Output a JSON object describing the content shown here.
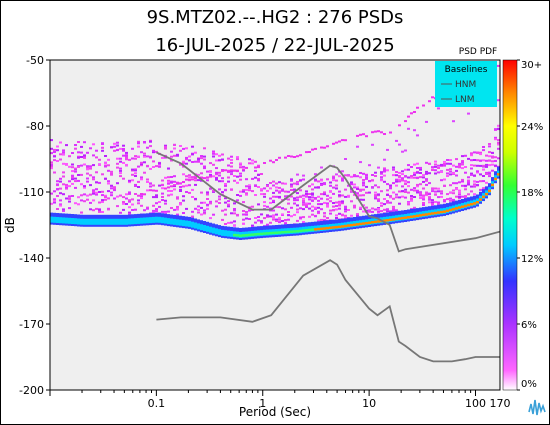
{
  "title_line1": "9S.MTZ02.--.HG2 : 276 PSDs",
  "title_line2": "16-JUL-2025 / 22-JUL-2025",
  "chart_data": {
    "type": "heatmap",
    "title": "9S.MTZ02.--.HG2 : 276 PSDs",
    "subtitle": "16-JUL-2025 / 22-JUL-2025",
    "xlabel": "Period (Sec)",
    "ylabel": "dB",
    "x_scale": "log",
    "xlim": [
      0.01,
      170
    ],
    "ylim": [
      -200,
      -50
    ],
    "x_ticks": [
      {
        "value": 0.1,
        "label": "0.1"
      },
      {
        "value": 1,
        "label": "1"
      },
      {
        "value": 10,
        "label": "10"
      },
      {
        "value": 100,
        "label": "100"
      },
      {
        "value": 170,
        "label": "170"
      }
    ],
    "y_ticks": [
      -50,
      -80,
      -110,
      -140,
      -170,
      -200
    ],
    "colorbar": {
      "title": "PSD PDF",
      "tick_labels": [
        "30+",
        "24%",
        "18%",
        "12%",
        "6%",
        "0%"
      ],
      "range": [
        0,
        30
      ]
    },
    "legend": {
      "title": "Baselines",
      "placement": "top-right",
      "entries": [
        "HNM",
        "LNM"
      ]
    },
    "hnm": [
      [
        0.1,
        -92
      ],
      [
        0.17,
        -97
      ],
      [
        0.4,
        -111
      ],
      [
        0.8,
        -118
      ],
      [
        1.2,
        -118
      ],
      [
        2.4,
        -107
      ],
      [
        4.3,
        -98
      ],
      [
        5,
        -99
      ],
      [
        6,
        -104
      ],
      [
        10,
        -121
      ],
      [
        12,
        -122
      ],
      [
        15.6,
        -125
      ],
      [
        19,
        -137
      ],
      [
        22,
        -136
      ],
      [
        100,
        -131
      ],
      [
        170,
        -128
      ]
    ],
    "lnm": [
      [
        0.1,
        -168
      ],
      [
        0.17,
        -167
      ],
      [
        0.4,
        -167
      ],
      [
        0.8,
        -169
      ],
      [
        1.2,
        -166
      ],
      [
        2.4,
        -148
      ],
      [
        4.3,
        -141
      ],
      [
        5,
        -143
      ],
      [
        6,
        -150
      ],
      [
        10,
        -163
      ],
      [
        12,
        -166
      ],
      [
        15.6,
        -162
      ],
      [
        19,
        -178
      ],
      [
        22,
        -180
      ],
      [
        30,
        -185
      ],
      [
        40,
        -187
      ],
      [
        60,
        -187
      ],
      [
        80,
        -186
      ],
      [
        100,
        -185
      ],
      [
        170,
        -185
      ]
    ],
    "mode_curve": [
      [
        0.01,
        -123
      ],
      [
        0.02,
        -124
      ],
      [
        0.05,
        -124
      ],
      [
        0.1,
        -123
      ],
      [
        0.2,
        -125
      ],
      [
        0.4,
        -129
      ],
      [
        0.6,
        -130
      ],
      [
        1,
        -129
      ],
      [
        2,
        -128
      ],
      [
        5,
        -126
      ],
      [
        10,
        -124
      ],
      [
        20,
        -122
      ],
      [
        50,
        -119
      ],
      [
        100,
        -115
      ],
      [
        130,
        -110
      ],
      [
        150,
        -104
      ],
      [
        170,
        -100
      ]
    ],
    "upper_branch": [
      [
        0.06,
        -112
      ],
      [
        0.1,
        -108
      ],
      [
        0.3,
        -102
      ],
      [
        1,
        -97
      ],
      [
        3,
        -90
      ],
      [
        8,
        -84
      ],
      [
        15,
        -82
      ],
      [
        20,
        -78
      ],
      [
        30,
        -70
      ],
      [
        60,
        -62
      ],
      [
        100,
        -57
      ],
      [
        170,
        -52
      ]
    ]
  }
}
